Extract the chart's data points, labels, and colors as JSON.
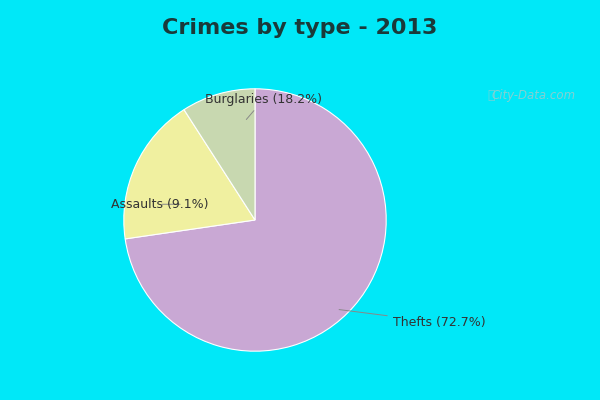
{
  "title": "Crimes by type - 2013",
  "slices": [
    {
      "label": "Thefts (72.7%)",
      "value": 72.7,
      "color": "#c9a8d4"
    },
    {
      "label": "Burglaries (18.2%)",
      "value": 18.2,
      "color": "#f0f0a0"
    },
    {
      "label": "Assaults (9.1%)",
      "value": 9.1,
      "color": "#c8d8b0"
    }
  ],
  "border_color": "#00e8f8",
  "inner_bg_color": "#d8ede0",
  "title_fontsize": 16,
  "label_fontsize": 9,
  "startangle": 90,
  "title_color": "#1a3a3a",
  "label_color": "#333333",
  "watermark": "City-Data.com",
  "watermark_color": "#99cccc"
}
